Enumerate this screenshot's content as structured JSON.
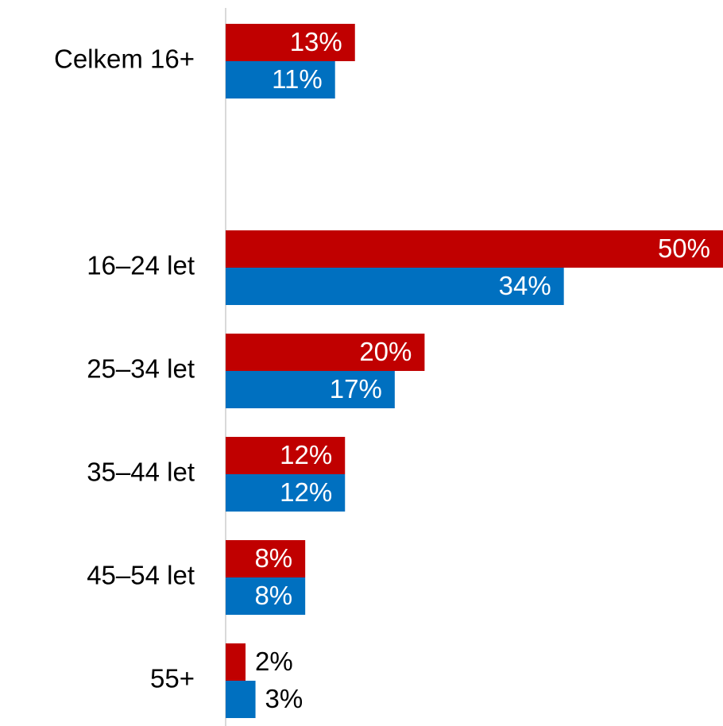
{
  "chart_data": {
    "type": "bar",
    "orientation": "horizontal",
    "categories": [
      "Celkem 16+",
      null,
      "16–24 let",
      "25–34 let",
      "35–44 let",
      "45–54 let",
      "55+"
    ],
    "series": [
      {
        "color": "#c00000",
        "values": [
          13,
          null,
          50,
          20,
          12,
          8,
          2
        ],
        "value_labels": [
          "13%",
          null,
          "50%",
          "20%",
          "12%",
          "8%",
          "2%"
        ]
      },
      {
        "color": "#0070c0",
        "values": [
          11,
          null,
          34,
          17,
          12,
          8,
          3
        ],
        "value_labels": [
          "11%",
          null,
          "34%",
          "17%",
          "12%",
          "8%",
          "3%"
        ]
      }
    ]
  }
}
